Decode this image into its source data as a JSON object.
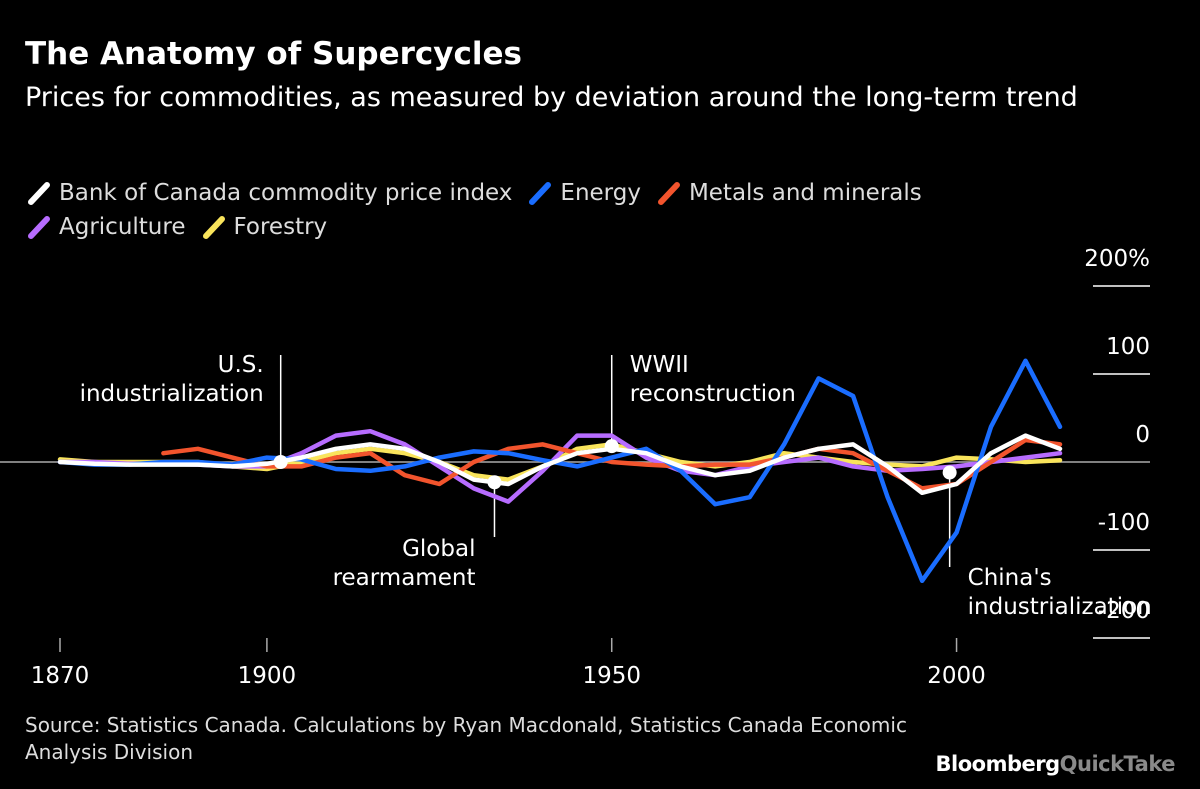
{
  "chart_data": {
    "type": "line",
    "title": "The Anatomy of Supercycles",
    "subtitle": "Prices for commodities, as measured by deviation around the long-term trend",
    "source": "Source: Statistics Canada. Calculations by Ryan Macdonald, Statistics Canada Economic Analysis Division",
    "logo": {
      "brand": "Bloomberg",
      "product": "QuickTake"
    },
    "x": [
      1870,
      1875,
      1880,
      1885,
      1890,
      1895,
      1900,
      1905,
      1910,
      1915,
      1920,
      1925,
      1930,
      1935,
      1940,
      1945,
      1950,
      1955,
      1960,
      1965,
      1970,
      1975,
      1980,
      1985,
      1990,
      1995,
      2000,
      2005,
      2010,
      2015
    ],
    "xlim": [
      1870,
      2015
    ],
    "xticks": [
      1870,
      1900,
      1950,
      2000
    ],
    "ylim": [
      -200,
      200
    ],
    "yticks": [
      {
        "value": 200,
        "label": "200%"
      },
      100,
      0,
      -100,
      -200
    ],
    "series": [
      {
        "name": "Bank of Canada commodity price index",
        "color": "#ffffff",
        "values": [
          0,
          -2,
          -3,
          -3,
          -3,
          -5,
          -2,
          5,
          15,
          20,
          15,
          0,
          -20,
          -25,
          -5,
          10,
          15,
          10,
          -5,
          -15,
          -10,
          5,
          15,
          20,
          -5,
          -35,
          -25,
          10,
          30,
          15
        ]
      },
      {
        "name": "Energy",
        "color": "#1a6dff",
        "values": [
          0,
          -3,
          -3,
          0,
          0,
          -3,
          5,
          3,
          -8,
          -10,
          -5,
          5,
          12,
          10,
          2,
          -5,
          5,
          15,
          -10,
          -48,
          -40,
          20,
          95,
          75,
          -40,
          -135,
          -80,
          40,
          115,
          40
        ]
      },
      {
        "name": "Metals and minerals",
        "color": "#f2542d",
        "values": [
          null,
          null,
          null,
          10,
          15,
          5,
          -5,
          -5,
          5,
          10,
          -15,
          -25,
          0,
          15,
          20,
          10,
          0,
          -3,
          -5,
          -3,
          -3,
          5,
          15,
          10,
          -10,
          -30,
          -25,
          0,
          25,
          20
        ]
      },
      {
        "name": "Agriculture",
        "color": "#b76cff",
        "values": [
          0,
          0,
          -2,
          -2,
          -3,
          -5,
          -5,
          10,
          30,
          35,
          20,
          -5,
          -30,
          -45,
          -10,
          30,
          30,
          5,
          -10,
          -15,
          -5,
          0,
          5,
          -5,
          -10,
          -8,
          -5,
          0,
          5,
          10
        ]
      },
      {
        "name": "Forestry",
        "color": "#f9e45b",
        "values": [
          3,
          0,
          0,
          0,
          0,
          -5,
          -8,
          0,
          10,
          15,
          10,
          0,
          -15,
          -20,
          -5,
          15,
          20,
          10,
          0,
          -5,
          0,
          10,
          5,
          0,
          -3,
          -5,
          5,
          3,
          0,
          2
        ]
      }
    ],
    "annotations": [
      {
        "x": 1902,
        "y": 0,
        "lines": [
          "U.S.",
          "industrialization"
        ]
      },
      {
        "x": 1950,
        "y": 18,
        "lines": [
          "WWII",
          "reconstruction"
        ]
      },
      {
        "x": 1933,
        "y": -23,
        "lines": [
          "Global",
          "rearmament"
        ]
      },
      {
        "x": 1999,
        "y": -12,
        "lines": [
          "China's",
          "industrialization"
        ]
      }
    ]
  }
}
